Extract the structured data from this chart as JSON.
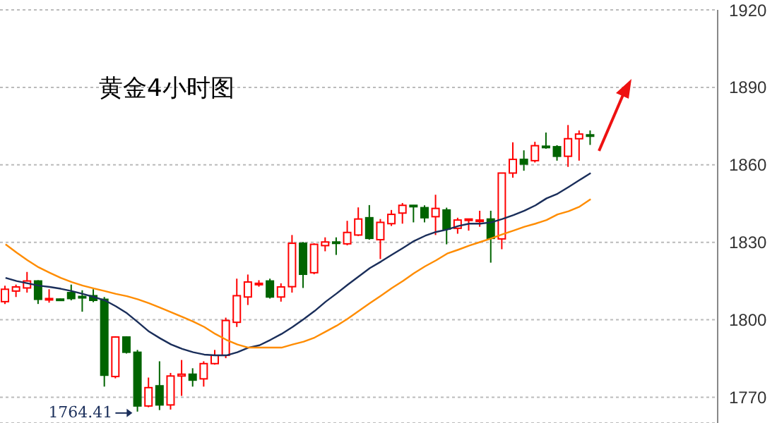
{
  "chart_data": {
    "type": "candlestick",
    "title": "黄金4小时图",
    "categories": [
      null,
      null,
      null,
      null,
      null,
      null,
      null,
      null,
      null,
      null,
      null,
      null,
      null,
      null,
      null,
      null,
      null,
      null,
      null,
      null,
      null,
      null,
      null,
      null,
      null,
      null,
      null,
      null,
      null,
      null,
      null,
      null,
      null,
      null,
      null,
      null,
      null,
      null,
      null,
      null,
      null,
      null,
      null,
      null,
      null,
      null,
      null,
      null,
      null,
      null,
      null,
      null,
      null,
      null,
      null,
      null,
      null,
      null,
      null,
      null,
      null,
      null,
      null,
      null,
      null
    ],
    "ohlc": [
      [
        1807.0,
        1813.2,
        1806.1,
        1811.8
      ],
      [
        1811.1,
        1813.6,
        1808.8,
        1812.7
      ],
      [
        1812.3,
        1818.5,
        1810.5,
        1815.0
      ],
      [
        1815.0,
        1815.3,
        1806.1,
        1807.9
      ],
      [
        1807.9,
        1811.8,
        1806.6,
        1808.2
      ],
      [
        1808.0,
        1808.2,
        1807.7,
        1807.9
      ],
      [
        1810.5,
        1813.6,
        1807.5,
        1808.2
      ],
      [
        1809.0,
        1811.4,
        1803.1,
        1808.6
      ],
      [
        1809.3,
        1811.8,
        1806.8,
        1807.5
      ],
      [
        1807.9,
        1808.8,
        1774.1,
        1778.5
      ],
      [
        1778.0,
        1793.6,
        1777.3,
        1793.3
      ],
      [
        1793.3,
        1793.6,
        1786.9,
        1787.4
      ],
      [
        1787.4,
        1788.3,
        1764.41,
        1766.6
      ],
      [
        1766.6,
        1777.6,
        1766.1,
        1773.7
      ],
      [
        1774.4,
        1783.9,
        1765.0,
        1767.0
      ],
      [
        1767.0,
        1779.4,
        1765.2,
        1778.2
      ],
      [
        1778.2,
        1784.4,
        1770.5,
        1778.9
      ],
      [
        1778.9,
        1781.2,
        1774.1,
        1776.6
      ],
      [
        1777.1,
        1783.9,
        1774.1,
        1783.0
      ],
      [
        1783.0,
        1788.3,
        1782.6,
        1786.2
      ],
      [
        1786.2,
        1800.8,
        1785.1,
        1799.7
      ],
      [
        1799.0,
        1815.9,
        1797.2,
        1809.3
      ],
      [
        1808.8,
        1817.5,
        1805.7,
        1814.6
      ],
      [
        1813.9,
        1815.3,
        1812.8,
        1814.1
      ],
      [
        1815.0,
        1815.9,
        1808.2,
        1808.8
      ],
      [
        1808.8,
        1814.1,
        1807.0,
        1812.7
      ],
      [
        1812.8,
        1832.8,
        1810.5,
        1829.6
      ],
      [
        1829.6,
        1830.1,
        1812.3,
        1817.6
      ],
      [
        1818.2,
        1829.6,
        1817.6,
        1829.2
      ],
      [
        1828.7,
        1831.9,
        1826.5,
        1830.1
      ],
      [
        1830.1,
        1831.9,
        1825.1,
        1829.6
      ],
      [
        1829.4,
        1838.3,
        1828.8,
        1833.8
      ],
      [
        1832.8,
        1843.5,
        1832.4,
        1839.0
      ],
      [
        1839.5,
        1844.4,
        1831.0,
        1831.5
      ],
      [
        1831.0,
        1839.0,
        1823.5,
        1837.7
      ],
      [
        1837.2,
        1842.5,
        1836.3,
        1840.8
      ],
      [
        1841.3,
        1845.2,
        1837.2,
        1844.3
      ],
      [
        1844.3,
        1844.4,
        1837.7,
        1843.8
      ],
      [
        1843.4,
        1844.3,
        1837.7,
        1839.5
      ],
      [
        1839.9,
        1848.4,
        1832.8,
        1843.1
      ],
      [
        1842.5,
        1843.4,
        1829.2,
        1835.1
      ],
      [
        1835.4,
        1839.5,
        1833.3,
        1838.6
      ],
      [
        1838.9,
        1839.1,
        1834.5,
        1839.0
      ],
      [
        1838.5,
        1842.2,
        1836.0,
        1838.6
      ],
      [
        1839.0,
        1842.2,
        1822.1,
        1831.5
      ],
      [
        1831.3,
        1856.8,
        1827.3,
        1856.8
      ],
      [
        1856.8,
        1868.7,
        1855.0,
        1862.1
      ],
      [
        1862.1,
        1865.6,
        1857.7,
        1860.3
      ],
      [
        1861.6,
        1868.9,
        1860.9,
        1867.4
      ],
      [
        1867.2,
        1872.5,
        1866.2,
        1867.0
      ],
      [
        1867.0,
        1867.6,
        1861.6,
        1863.3
      ],
      [
        1863.3,
        1875.4,
        1859.2,
        1870.1
      ],
      [
        1870.1,
        1873.3,
        1861.6,
        1871.9
      ],
      [
        1871.6,
        1873.3,
        1867.7,
        1871.5
      ],
      null,
      null,
      null,
      null,
      null,
      null,
      null,
      null,
      null,
      null,
      null
    ],
    "colors": [
      "#ff0000",
      "#ff0000",
      "#ff0000",
      "#006400",
      "#ff0000",
      "#006400",
      "#006400",
      "#006400",
      "#006400",
      "#006400",
      "#ff0000",
      "#006400",
      "#006400",
      "#ff0000",
      "#006400",
      "#ff0000",
      "#ff0000",
      "#006400",
      "#ff0000",
      "#ff0000",
      "#ff0000",
      "#ff0000",
      "#ff0000",
      "#ff0000",
      "#006400",
      "#ff0000",
      "#ff0000",
      "#006400",
      "#ff0000",
      "#ff0000",
      "#006400",
      "#ff0000",
      "#ff0000",
      "#006400",
      "#ff0000",
      "#ff0000",
      "#ff0000",
      "#006400",
      "#006400",
      "#ff0000",
      "#006400",
      "#ff0000",
      "#ff0000",
      "#ff0000",
      "#006400",
      "#ff0000",
      "#ff0000",
      "#006400",
      "#ff0000",
      "#006400",
      "#006400",
      "#ff0000",
      "#ff0000",
      "#006400",
      null,
      null,
      null,
      null,
      null,
      null,
      null,
      null,
      null,
      null,
      null
    ],
    "series": [
      {
        "type": "line",
        "color": "#1a2e5a",
        "values": [
          1816.2,
          1815.0,
          1814.1,
          1813.2,
          1812.7,
          1812.0,
          1811.1,
          1810.0,
          1808.8,
          1807.5,
          1805.2,
          1802.5,
          1799.0,
          1795.4,
          1792.8,
          1790.4,
          1788.7,
          1787.4,
          1786.5,
          1786.2,
          1786.2,
          1787.4,
          1789.2,
          1790.1,
          1792.2,
          1794.5,
          1797.2,
          1800.2,
          1803.4,
          1807.0,
          1810.2,
          1813.6,
          1816.8,
          1820.0,
          1822.5,
          1825.2,
          1827.8,
          1830.5,
          1832.5,
          1834.0,
          1834.9,
          1836.3,
          1837.2,
          1837.2,
          1837.7,
          1839.0,
          1840.5,
          1842.2,
          1844.3,
          1847.0,
          1848.8,
          1851.4,
          1854.1,
          1856.8,
          null,
          null,
          null,
          null,
          null,
          null,
          null,
          null,
          null,
          null,
          null
        ]
      },
      {
        "type": "line",
        "color": "#ff8c00",
        "values": [
          1829.2,
          1826.0,
          1823.0,
          1820.3,
          1818.2,
          1816.2,
          1814.6,
          1813.2,
          1812.1,
          1811.1,
          1810.0,
          1809.1,
          1807.9,
          1806.4,
          1804.7,
          1802.9,
          1801.1,
          1799.3,
          1797.2,
          1794.5,
          1792.2,
          1790.4,
          1789.2,
          1789.2,
          1789.2,
          1789.2,
          1790.4,
          1791.5,
          1793.1,
          1795.4,
          1797.7,
          1800.4,
          1803.4,
          1806.4,
          1809.3,
          1812.3,
          1815.0,
          1818.0,
          1820.7,
          1823.0,
          1825.6,
          1827.1,
          1828.7,
          1830.1,
          1831.5,
          1833.1,
          1834.5,
          1836.0,
          1837.2,
          1838.6,
          1840.8,
          1842.0,
          1843.8,
          1846.7,
          null,
          null,
          null,
          null,
          null,
          null,
          null,
          null,
          null,
          null,
          null
        ]
      }
    ],
    "ylim": [
      1760,
      1920
    ],
    "yticks": [
      1770,
      1800,
      1830,
      1860,
      1890,
      1920
    ],
    "grid": "y",
    "tick_labels": "y",
    "annotations": [
      "1764.41"
    ]
  }
}
